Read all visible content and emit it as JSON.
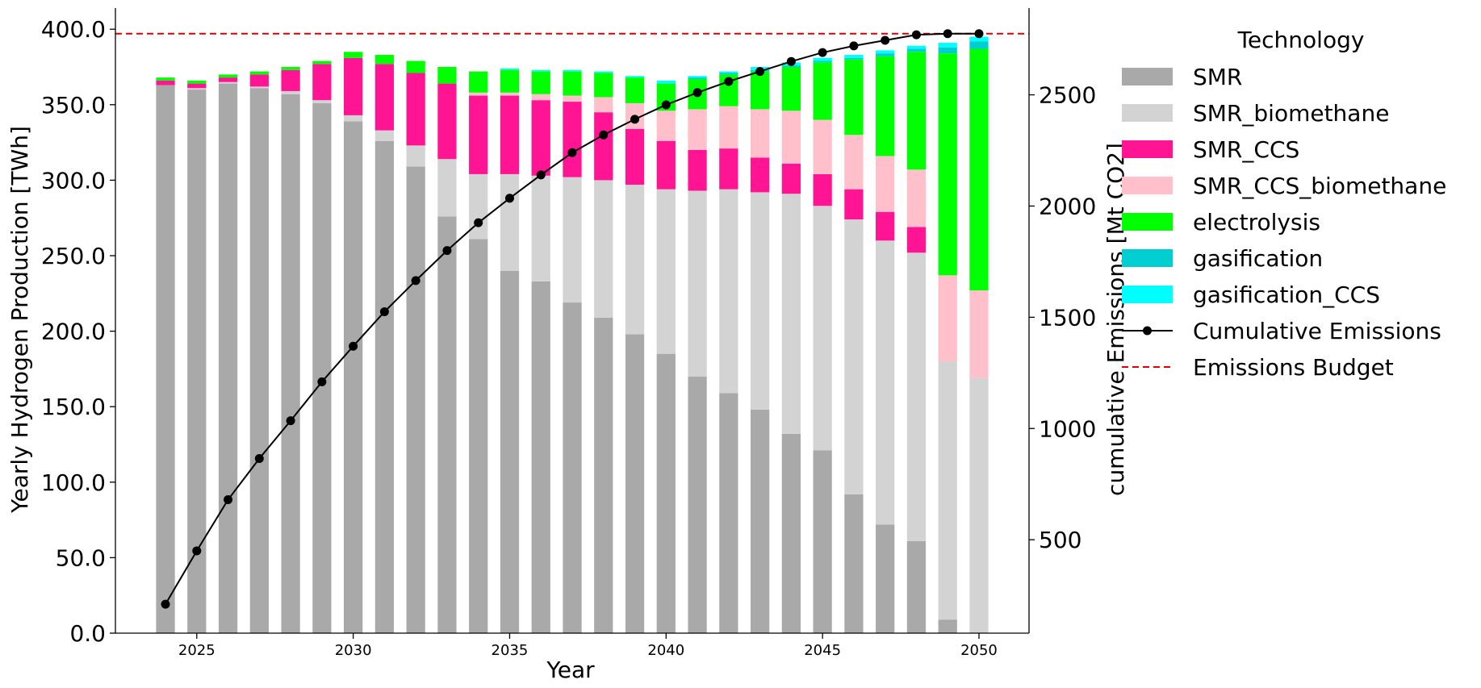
{
  "chart_data": {
    "type": "bar",
    "stacked": true,
    "xlabel": "Year",
    "ylabel": "Yearly Hydrogen Production [TWh]",
    "y2label": "cumulative Emissions [Mt CO2]",
    "ylim": [
      0,
      414
    ],
    "y2lim": [
      80,
      2890
    ],
    "yticks": [
      "0.0",
      "50.0",
      "100.0",
      "150.0",
      "200.0",
      "250.0",
      "300.0",
      "350.0",
      "400.0"
    ],
    "ytick_values": [
      0,
      50,
      100,
      150,
      200,
      250,
      300,
      350,
      400
    ],
    "y2ticks": [
      "500",
      "1000",
      "1500",
      "2000",
      "2500"
    ],
    "y2tick_values": [
      500,
      1000,
      1500,
      2000,
      2500
    ],
    "xticks": [
      "2025",
      "2030",
      "2035",
      "2040",
      "2045",
      "2050"
    ],
    "xtick_values": [
      2025,
      2030,
      2035,
      2040,
      2045,
      2050
    ],
    "x": [
      2024,
      2025,
      2026,
      2027,
      2028,
      2029,
      2030,
      2031,
      2032,
      2033,
      2034,
      2035,
      2036,
      2037,
      2038,
      2039,
      2040,
      2041,
      2042,
      2043,
      2044,
      2045,
      2046,
      2047,
      2048,
      2049,
      2050
    ],
    "xlim": [
      2022.4,
      2051.6
    ],
    "grid": false,
    "legend_title": "Technology",
    "legend_position": "outside-right",
    "series": [
      {
        "name": "SMR",
        "color": "#a9a9a9",
        "values": [
          363,
          360,
          364,
          361,
          357,
          351,
          339,
          326,
          309,
          276,
          261,
          240,
          233,
          219,
          209,
          198,
          185,
          170,
          159,
          148,
          132,
          121,
          92,
          72,
          61,
          9,
          0
        ]
      },
      {
        "name": "SMR_biomethane",
        "color": "#d3d3d3",
        "values": [
          0,
          1,
          1,
          1,
          2,
          2,
          4,
          7,
          14,
          38,
          43,
          64,
          70,
          83,
          91,
          99,
          109,
          123,
          135,
          144,
          159,
          162,
          182,
          188,
          191,
          171,
          169
        ]
      },
      {
        "name": "SMR_CCS",
        "color": "#ff1493",
        "values": [
          3,
          3,
          3,
          8,
          14,
          24,
          38,
          44,
          48,
          50,
          52,
          52,
          50,
          50,
          45,
          37,
          32,
          27,
          27,
          23,
          20,
          21,
          20,
          19,
          17,
          0,
          0
        ]
      },
      {
        "name": "SMR_CCS_biomethane",
        "color": "#ffc0cb",
        "values": [
          0,
          0,
          0,
          0,
          0,
          0,
          0,
          0,
          0,
          0,
          2,
          2,
          4,
          4,
          10,
          17,
          20,
          27,
          28,
          32,
          35,
          36,
          36,
          37,
          38,
          57,
          58
        ]
      },
      {
        "name": "electrolysis",
        "color": "#00ff00",
        "values": [
          2,
          2,
          2,
          2,
          2,
          2,
          4,
          6,
          8,
          11,
          14,
          15,
          15,
          16,
          16,
          17,
          18,
          20,
          21,
          25,
          29,
          38,
          50,
          66,
          78,
          147,
          160
        ]
      },
      {
        "name": "gasification",
        "color": "#00ced1",
        "values": [
          0,
          0,
          0,
          0,
          0,
          0,
          0,
          0,
          0,
          0,
          0,
          0,
          0,
          0,
          0,
          0,
          0,
          1,
          1,
          1,
          1,
          1,
          1,
          2,
          2,
          4,
          5
        ]
      },
      {
        "name": "gasification_CCS",
        "color": "#00ffff",
        "values": [
          0,
          0,
          0,
          0,
          0,
          0,
          0,
          0,
          0,
          0,
          0,
          1,
          1,
          1,
          1,
          1,
          2,
          1,
          1,
          2,
          2,
          2,
          2,
          2,
          2,
          3,
          3
        ]
      }
    ],
    "cumulative_emissions": {
      "name": "Cumulative Emissions",
      "color": "#000000",
      "axis": "right",
      "values": [
        210,
        450,
        680,
        865,
        1035,
        1210,
        1370,
        1525,
        1665,
        1800,
        1925,
        2035,
        2140,
        2240,
        2320,
        2390,
        2455,
        2510,
        2560,
        2605,
        2650,
        2690,
        2720,
        2745,
        2770,
        2775,
        2775
      ]
    },
    "emissions_budget": {
      "name": "Emissions Budget",
      "color": "#e00000",
      "axis": "right",
      "value": 2775
    }
  }
}
